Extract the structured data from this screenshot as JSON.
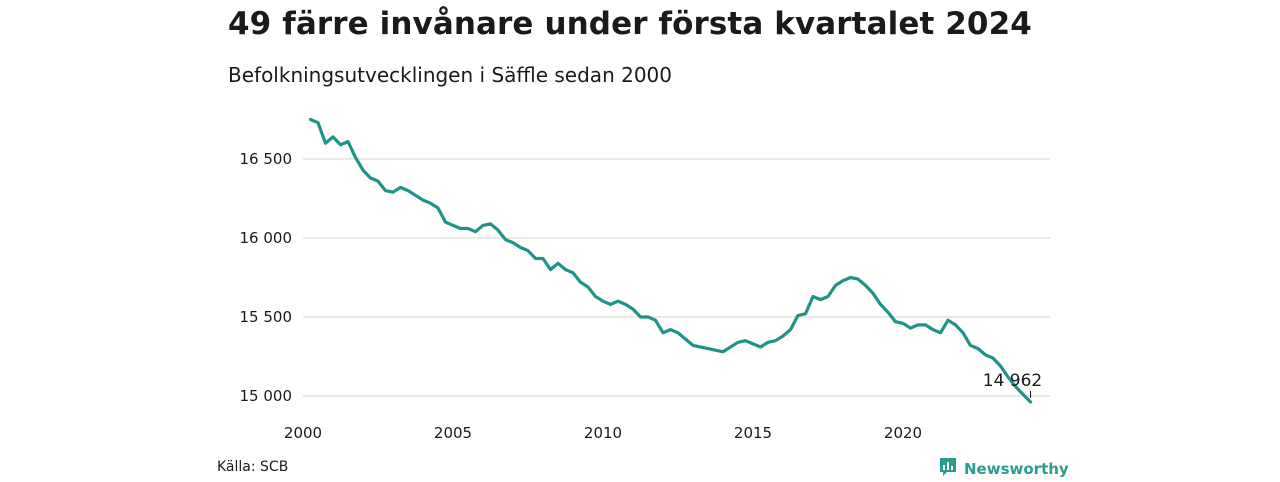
{
  "title": "49 färre invånare under första kvartalet 2024",
  "subtitle": "Befolkningsutvecklingen i Säffle sedan 2000",
  "source": "Källa: SCB",
  "brand": "Newsworthy",
  "colors": {
    "line": "#1f9486",
    "grid": "#dddddd",
    "brand": "#2a9d8f"
  },
  "chart_data": {
    "type": "line",
    "title": "",
    "xlabel": "",
    "ylabel": "",
    "xlim": [
      2000,
      2024.25
    ],
    "ylim": [
      14960,
      16760
    ],
    "xticks": [
      2000,
      2005,
      2010,
      2015,
      2020
    ],
    "xtick_labels": [
      "2000",
      "2005",
      "2010",
      "2015",
      "2020"
    ],
    "yticks": [
      15000,
      15500,
      16000,
      16500
    ],
    "ytick_labels": [
      "15 000",
      "15 500",
      "16 000",
      "16 500"
    ],
    "grid": "horizontal",
    "last_value_label": "14 962",
    "series": [
      {
        "name": "",
        "x": [
          2000.25,
          2000.5,
          2000.75,
          2001.0,
          2001.25,
          2001.5,
          2001.75,
          2002.0,
          2002.25,
          2002.5,
          2002.75,
          2003.0,
          2003.25,
          2003.5,
          2003.75,
          2004.0,
          2004.25,
          2004.5,
          2004.75,
          2005.0,
          2005.25,
          2005.5,
          2005.75,
          2006.0,
          2006.25,
          2006.5,
          2006.75,
          2007.0,
          2007.25,
          2007.5,
          2007.75,
          2008.0,
          2008.25,
          2008.5,
          2008.75,
          2009.0,
          2009.25,
          2009.5,
          2009.75,
          2010.0,
          2010.25,
          2010.5,
          2010.75,
          2011.0,
          2011.25,
          2011.5,
          2011.75,
          2012.0,
          2012.25,
          2012.5,
          2012.75,
          2013.0,
          2013.25,
          2013.5,
          2013.75,
          2014.0,
          2014.25,
          2014.5,
          2014.75,
          2015.0,
          2015.25,
          2015.5,
          2015.75,
          2016.0,
          2016.25,
          2016.5,
          2016.75,
          2017.0,
          2017.25,
          2017.5,
          2017.75,
          2018.0,
          2018.25,
          2018.5,
          2018.75,
          2019.0,
          2019.25,
          2019.5,
          2019.75,
          2020.0,
          2020.25,
          2020.5,
          2020.75,
          2021.0,
          2021.25,
          2021.5,
          2021.75,
          2022.0,
          2022.25,
          2022.5,
          2022.75,
          2023.0,
          2023.25,
          2023.5,
          2023.75,
          2024.0,
          2024.25
        ],
        "values": [
          16750,
          16730,
          16600,
          16640,
          16590,
          16610,
          16510,
          16430,
          16380,
          16360,
          16300,
          16290,
          16320,
          16300,
          16270,
          16240,
          16220,
          16190,
          16100,
          16080,
          16060,
          16060,
          16040,
          16080,
          16090,
          16050,
          15990,
          15970,
          15940,
          15920,
          15870,
          15870,
          15800,
          15840,
          15800,
          15780,
          15720,
          15690,
          15630,
          15600,
          15580,
          15600,
          15580,
          15550,
          15500,
          15500,
          15480,
          15400,
          15420,
          15400,
          15360,
          15320,
          15310,
          15300,
          15290,
          15280,
          15310,
          15340,
          15350,
          15330,
          15310,
          15340,
          15350,
          15380,
          15420,
          15510,
          15520,
          15630,
          15610,
          15630,
          15700,
          15730,
          15750,
          15740,
          15700,
          15650,
          15580,
          15530,
          15470,
          15460,
          15430,
          15450,
          15450,
          15420,
          15400,
          15480,
          15450,
          15400,
          15320,
          15300,
          15260,
          15240,
          15190,
          15120,
          15060,
          15010,
          14962
        ]
      }
    ]
  }
}
